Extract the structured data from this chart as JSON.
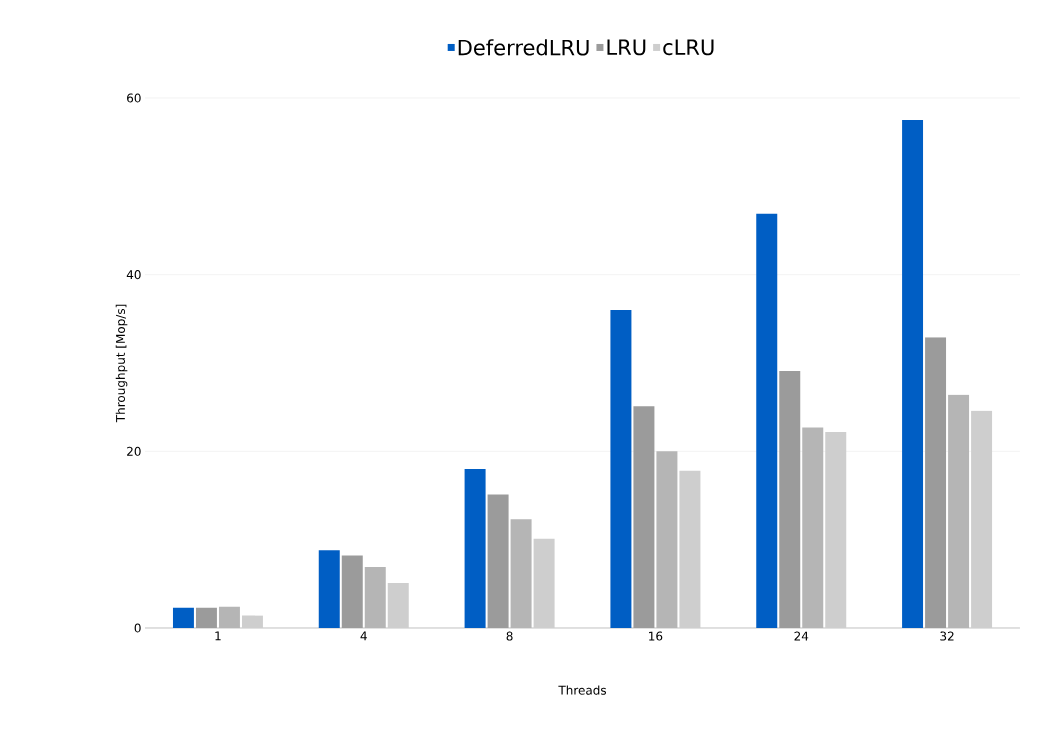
{
  "chart_data": {
    "type": "bar",
    "xlabel": "Threads",
    "ylabel": "Throughput [Mop/s]",
    "categories": [
      "1",
      "4",
      "8",
      "16",
      "24",
      "32"
    ],
    "series": [
      {
        "name": "DeferredLRU",
        "color": "#005ec4",
        "values": [
          2.3,
          8.8,
          18,
          36,
          46.9,
          57.5
        ]
      },
      {
        "name": "LRU",
        "color": "#9b9b9b",
        "values": [
          2.3,
          8.2,
          15.1,
          25.1,
          29.1,
          32.9
        ]
      },
      {
        "color": "#b5b5b5",
        "values": [
          2.4,
          6.9,
          12.3,
          20,
          22.7,
          26.4
        ]
      },
      {
        "name": "cLRU",
        "color": "#cecece",
        "values": [
          1.4,
          5.1,
          10.1,
          17.8,
          22.2,
          24.6
        ]
      }
    ],
    "ylim": [
      0,
      60
    ],
    "yticks": [
      0,
      20,
      40,
      60
    ],
    "grid": "y",
    "legend": "top"
  }
}
